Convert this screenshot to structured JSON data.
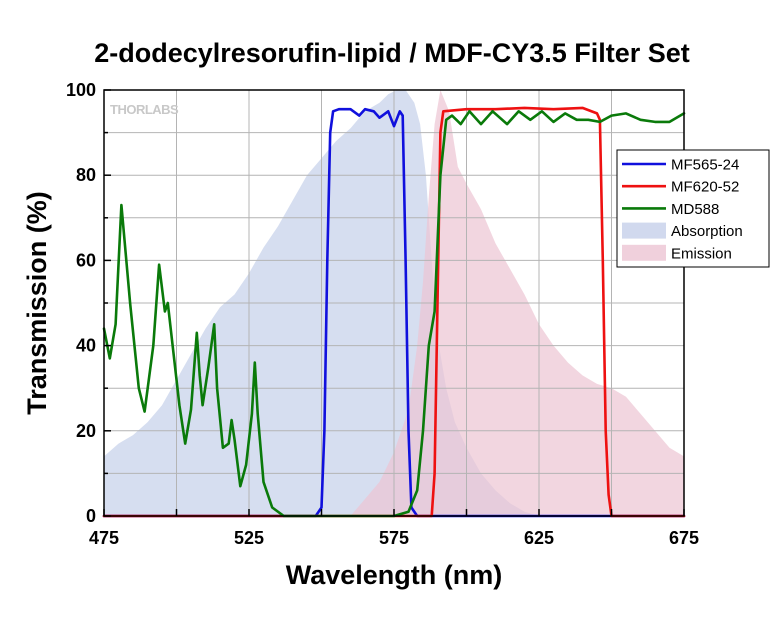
{
  "chart_data": {
    "type": "line",
    "title": "2-dodecylresorufin-lipid / MDF-CY3.5 Filter Set",
    "xlabel": "Wavelength (nm)",
    "ylabel": "Transmission (%)",
    "xlim": [
      475,
      675
    ],
    "ylim": [
      0,
      100
    ],
    "xticks": [
      475,
      525,
      575,
      625,
      675
    ],
    "yticks": [
      0,
      20,
      40,
      60,
      80,
      100
    ],
    "grid": true,
    "legend_position": "right",
    "watermark": "THORLABS",
    "series": [
      {
        "name": "MF565-24",
        "kind": "line",
        "color": "#1010dd",
        "points": [
          [
            475,
            0
          ],
          [
            548,
            0
          ],
          [
            550,
            2
          ],
          [
            551,
            20
          ],
          [
            552,
            60
          ],
          [
            553,
            90
          ],
          [
            554,
            95
          ],
          [
            556,
            95.5
          ],
          [
            560,
            95.5
          ],
          [
            563,
            94
          ],
          [
            565,
            95.5
          ],
          [
            568,
            95
          ],
          [
            570,
            93.5
          ],
          [
            573,
            95
          ],
          [
            575,
            91.5
          ],
          [
            577,
            95
          ],
          [
            578,
            94
          ],
          [
            579,
            60
          ],
          [
            580,
            20
          ],
          [
            581,
            2
          ],
          [
            583,
            0
          ],
          [
            675,
            0
          ]
        ]
      },
      {
        "name": "MF620-52",
        "kind": "line",
        "color": "#ee1111",
        "points": [
          [
            475,
            0
          ],
          [
            588,
            0
          ],
          [
            589,
            10
          ],
          [
            590,
            50
          ],
          [
            591,
            90
          ],
          [
            592,
            95
          ],
          [
            600,
            95.5
          ],
          [
            610,
            95.5
          ],
          [
            620,
            95.8
          ],
          [
            630,
            95.5
          ],
          [
            640,
            95.8
          ],
          [
            645,
            94.5
          ],
          [
            646,
            93
          ],
          [
            647,
            60
          ],
          [
            648,
            20
          ],
          [
            649,
            5
          ],
          [
            650,
            0
          ],
          [
            675,
            0
          ]
        ]
      },
      {
        "name": "MD588",
        "kind": "line",
        "color": "#0a7a0a",
        "points": [
          [
            475,
            44
          ],
          [
            477,
            37
          ],
          [
            479,
            45
          ],
          [
            481,
            73
          ],
          [
            484,
            50
          ],
          [
            487,
            30
          ],
          [
            489,
            24.5
          ],
          [
            492,
            40
          ],
          [
            494,
            59
          ],
          [
            496,
            48
          ],
          [
            497,
            50
          ],
          [
            499,
            38
          ],
          [
            501,
            26
          ],
          [
            503,
            17
          ],
          [
            505,
            25
          ],
          [
            507,
            43
          ],
          [
            508,
            33
          ],
          [
            509,
            26
          ],
          [
            511,
            35
          ],
          [
            513,
            45
          ],
          [
            514,
            30
          ],
          [
            516,
            16
          ],
          [
            518,
            17
          ],
          [
            519,
            22.5
          ],
          [
            520,
            18
          ],
          [
            522,
            7
          ],
          [
            524,
            12
          ],
          [
            526,
            24
          ],
          [
            527,
            36
          ],
          [
            528,
            24
          ],
          [
            530,
            8
          ],
          [
            533,
            2
          ],
          [
            537,
            0
          ],
          [
            575,
            0
          ],
          [
            580,
            1
          ],
          [
            583,
            6
          ],
          [
            585,
            20
          ],
          [
            587,
            40
          ],
          [
            589,
            48
          ],
          [
            591,
            80
          ],
          [
            593,
            93
          ],
          [
            595,
            94
          ],
          [
            598,
            92
          ],
          [
            601,
            95
          ],
          [
            605,
            92
          ],
          [
            609,
            95
          ],
          [
            614,
            92
          ],
          [
            618,
            95
          ],
          [
            622,
            93
          ],
          [
            626,
            95
          ],
          [
            630,
            92.5
          ],
          [
            634,
            94.5
          ],
          [
            638,
            93
          ],
          [
            642,
            93
          ],
          [
            646,
            92.5
          ],
          [
            650,
            94
          ],
          [
            655,
            94.5
          ],
          [
            660,
            93
          ],
          [
            665,
            92.5
          ],
          [
            670,
            92.5
          ],
          [
            675,
            94.5
          ]
        ]
      },
      {
        "name": "Absorption",
        "kind": "area",
        "color": "#c5d0ea",
        "points": [
          [
            475,
            14
          ],
          [
            480,
            17
          ],
          [
            485,
            19
          ],
          [
            490,
            22
          ],
          [
            495,
            26
          ],
          [
            500,
            32
          ],
          [
            505,
            38
          ],
          [
            510,
            44
          ],
          [
            515,
            49
          ],
          [
            520,
            52
          ],
          [
            525,
            57
          ],
          [
            530,
            63
          ],
          [
            535,
            68
          ],
          [
            540,
            74
          ],
          [
            545,
            80
          ],
          [
            550,
            84
          ],
          [
            555,
            88
          ],
          [
            560,
            91
          ],
          [
            565,
            95
          ],
          [
            570,
            97
          ],
          [
            573,
            99
          ],
          [
            576,
            100
          ],
          [
            579,
            100
          ],
          [
            582,
            97
          ],
          [
            584,
            92
          ],
          [
            586,
            80
          ],
          [
            588,
            60
          ],
          [
            590,
            42
          ],
          [
            593,
            30
          ],
          [
            596,
            22
          ],
          [
            600,
            16
          ],
          [
            605,
            10
          ],
          [
            610,
            6
          ],
          [
            615,
            3
          ],
          [
            620,
            1
          ],
          [
            625,
            0
          ]
        ]
      },
      {
        "name": "Emission",
        "kind": "area",
        "color": "#ecc4d3",
        "points": [
          [
            560,
            0
          ],
          [
            565,
            4
          ],
          [
            570,
            8
          ],
          [
            575,
            15
          ],
          [
            580,
            25
          ],
          [
            583,
            40
          ],
          [
            585,
            55
          ],
          [
            587,
            75
          ],
          [
            589,
            92
          ],
          [
            591,
            100
          ],
          [
            594,
            95
          ],
          [
            597,
            82
          ],
          [
            600,
            78
          ],
          [
            605,
            72
          ],
          [
            610,
            64
          ],
          [
            615,
            58
          ],
          [
            620,
            52
          ],
          [
            625,
            45
          ],
          [
            630,
            40
          ],
          [
            635,
            36
          ],
          [
            640,
            33
          ],
          [
            645,
            31
          ],
          [
            650,
            30
          ],
          [
            655,
            28
          ],
          [
            660,
            24
          ],
          [
            665,
            20
          ],
          [
            670,
            16
          ],
          [
            675,
            14
          ]
        ]
      }
    ]
  }
}
